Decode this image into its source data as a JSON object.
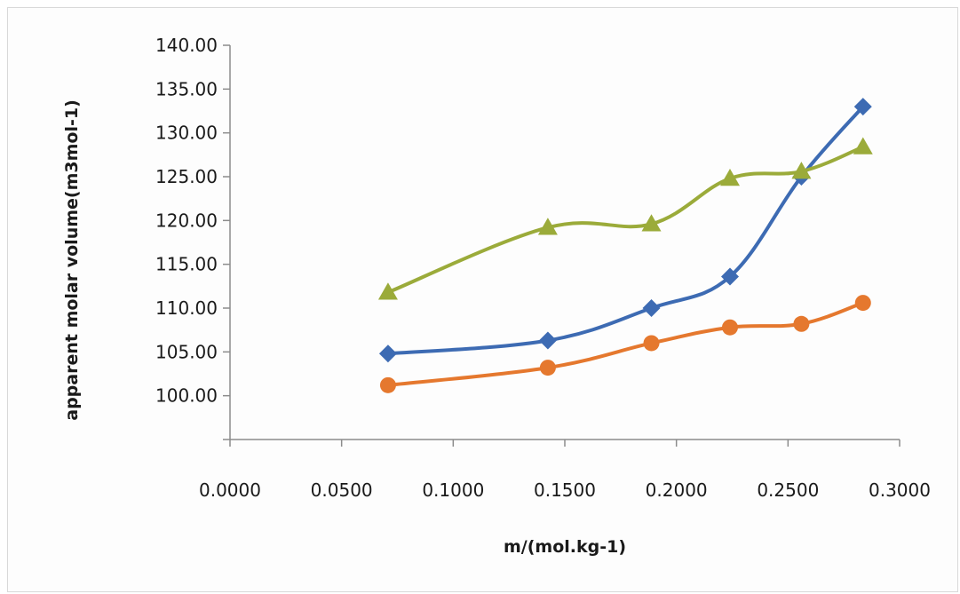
{
  "chart_data": {
    "type": "line",
    "title": "",
    "xlabel": "m/(mol.kg-1)",
    "ylabel": "apparent molar volume(m3mol-1)",
    "xlim": [
      0.0,
      0.3
    ],
    "ylim": [
      95.0,
      140.0
    ],
    "x_ticks": [
      "0.0000",
      "0.0500",
      "0.1000",
      "0.1500",
      "0.2000",
      "0.2500",
      "0.3000"
    ],
    "y_ticks": [
      "100.00",
      "105.00",
      "110.00",
      "115.00",
      "120.00",
      "125.00",
      "130.00",
      "135.00",
      "140.00"
    ],
    "grid": false,
    "legend": "none",
    "series": [
      {
        "marker": "diamond",
        "color": "#3d6bb3",
        "x": [
          0.0708,
          0.1424,
          0.1888,
          0.224,
          0.256,
          0.2836
        ],
        "y": [
          104.8,
          106.3,
          110.0,
          113.6,
          125.0,
          133.0
        ]
      },
      {
        "marker": "circle",
        "color": "#e5782e",
        "x": [
          0.0708,
          0.1424,
          0.1888,
          0.224,
          0.256,
          0.2836
        ],
        "y": [
          101.2,
          103.2,
          106.0,
          107.8,
          108.2,
          110.6
        ]
      },
      {
        "marker": "triangle",
        "color": "#9bab3a",
        "x": [
          0.0708,
          0.1424,
          0.1888,
          0.224,
          0.256,
          0.2836
        ],
        "y": [
          111.8,
          119.2,
          119.6,
          124.8,
          125.6,
          128.4
        ]
      }
    ]
  }
}
